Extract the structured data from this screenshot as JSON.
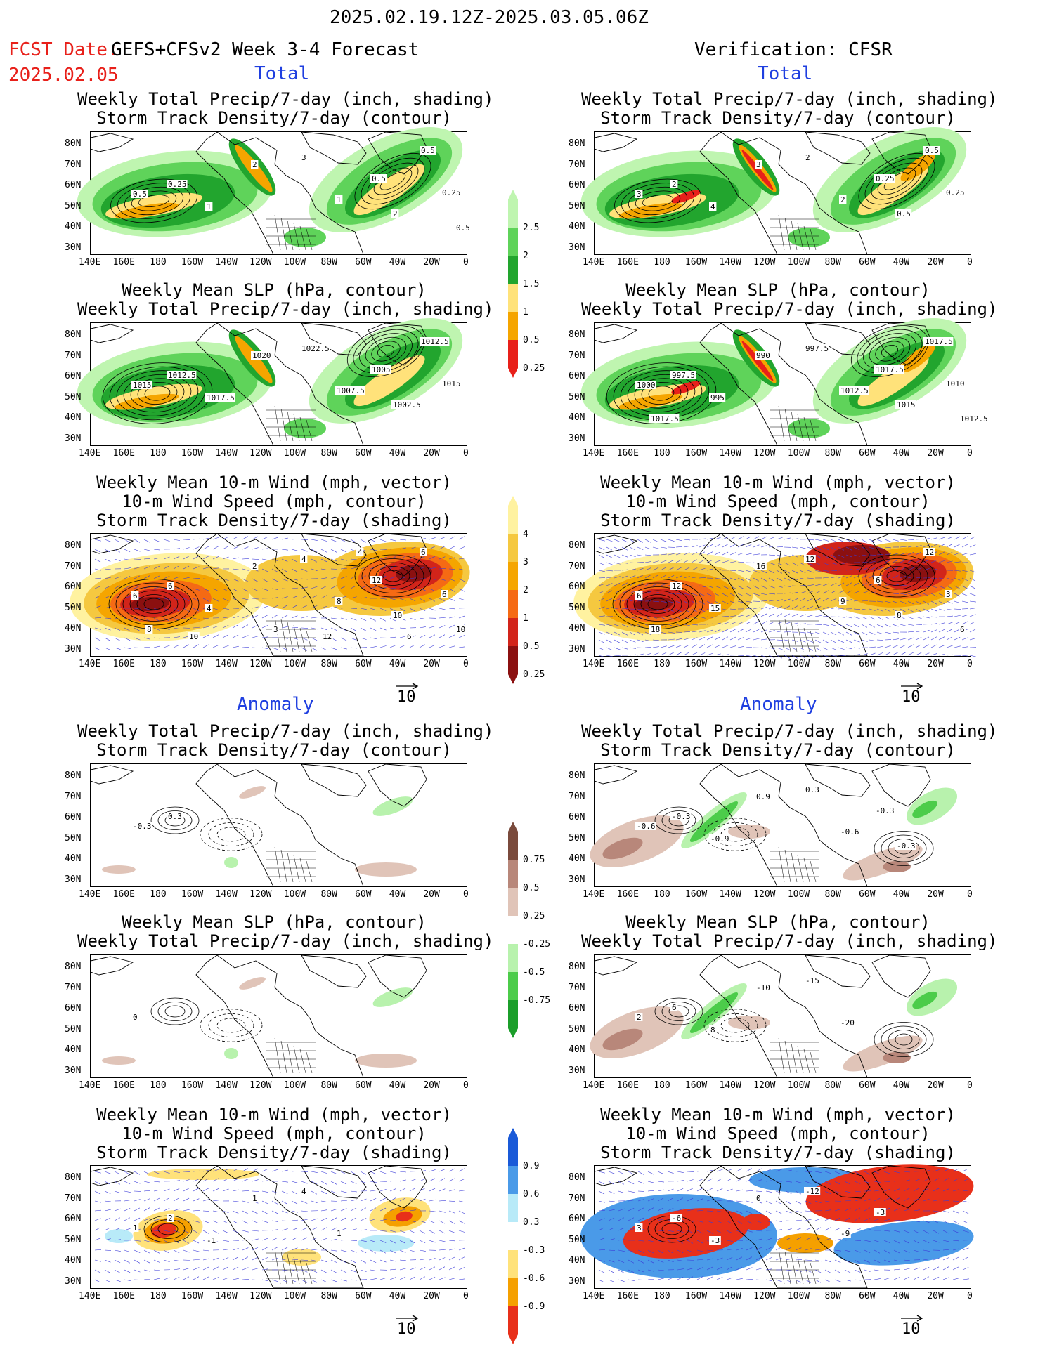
{
  "header": {
    "date_range": "2025.02.19.12Z-2025.03.05.06Z",
    "fcst_label": "FCST Date:",
    "fcst_date": "2025.02.05",
    "model": "GEFS+CFSv2 Week 3-4 Forecast",
    "verification": "Verification: CFSR"
  },
  "sections": {
    "total": "Total",
    "anomaly": "Anomaly"
  },
  "panel_titles": {
    "precip_storm": [
      "Weekly Total Precip/7-day (inch, shading)",
      "Storm Track Density/7-day (contour)"
    ],
    "slp_precip": [
      "Weekly Mean SLP (hPa, contour)",
      "Weekly Total Precip/7-day (inch, shading)"
    ],
    "wind": [
      "Weekly Mean 10-m Wind (mph, vector)",
      "10-m Wind Speed (mph, contour)",
      "Storm Track Density/7-day (shading)"
    ]
  },
  "axes": {
    "lat_labels": [
      "80N",
      "70N",
      "60N",
      "50N",
      "40N",
      "30N"
    ],
    "lon_labels": [
      "140E",
      "160E",
      "180",
      "160W",
      "140W",
      "120W",
      "100W",
      "80W",
      "60W",
      "40W",
      "20W",
      "0"
    ]
  },
  "vector_ref": "10",
  "colorbars": {
    "total_precip": {
      "labels": [
        "2.5",
        "2",
        "1.5",
        "1",
        "0.5",
        "0.25"
      ],
      "colors": [
        "#e8201a",
        "#f5a500",
        "#ffe27a",
        "#22a52e",
        "#5fd35a",
        "#bff5b0"
      ]
    },
    "total_storm": {
      "labels": [
        "4",
        "3",
        "2",
        "1",
        "0.5",
        "0.25"
      ],
      "colors": [
        "#8b1010",
        "#d2241a",
        "#f56a14",
        "#f5a500",
        "#f5c840",
        "#fff2a0"
      ]
    },
    "anom_precip": {
      "labels": [
        "0.75",
        "0.5",
        "0.25",
        "-0.25",
        "-0.5",
        "-0.75"
      ],
      "colors": [
        "#1b9e2a",
        "#4ccc4a",
        "#b8f2ad",
        "#ffffff",
        "#e0c4b8",
        "#b8877a",
        "#7a4a3c"
      ]
    },
    "anom_storm": {
      "labels": [
        "0.9",
        "0.6",
        "0.3",
        "-0.3",
        "-0.6",
        "-0.9"
      ],
      "colors": [
        "#e8301a",
        "#f5a000",
        "#ffe27a",
        "#ffffff",
        "#b8eaf8",
        "#4a9ae8",
        "#1a5ad8"
      ]
    }
  },
  "contour_labels": {
    "p1": [
      "0.5",
      "0.25",
      "1",
      "2",
      "3",
      "1",
      "0.5",
      "2",
      "0.5",
      "0.25",
      "0.5"
    ],
    "p2": [
      "3",
      "2",
      "4",
      "3",
      "2",
      "2",
      "0.25",
      "0.5",
      "0.5",
      "0.25"
    ],
    "p3": [
      "1015",
      "1012.5",
      "1017.5",
      "1020",
      "1022.5",
      "1007.5",
      "1005",
      "1002.5",
      "1012.5",
      "1015"
    ],
    "p4": [
      "1000",
      "997.5",
      "995",
      "990",
      "997.5",
      "1012.5",
      "1017.5",
      "1015",
      "1017.5",
      "1010",
      "1012.5",
      "1017.5"
    ],
    "p5": [
      "6",
      "6",
      "4",
      "2",
      "4",
      "8",
      "12",
      "10",
      "6",
      "6",
      "10",
      "8",
      "10",
      "3",
      "12",
      "4",
      "6"
    ],
    "p6": [
      "6",
      "12",
      "15",
      "16",
      "12",
      "9",
      "6",
      "8",
      "12",
      "3",
      "6",
      "18"
    ],
    "p7": [
      "-0.3",
      "0.3"
    ],
    "p8": [
      "-0.6",
      "-0.3",
      "-0.9",
      "0.9",
      "0.3",
      "-0.6",
      "-0.3",
      "-0.3"
    ],
    "p9": [
      "0"
    ],
    "p10": [
      "2",
      "6",
      "8",
      "-10",
      "-15",
      "-20"
    ],
    "p11": [
      "1",
      "2",
      "-1",
      "1",
      "4",
      "1"
    ],
    "p12": [
      "3",
      "-6",
      "-3",
      "0",
      "-12",
      "-9",
      "-3"
    ]
  }
}
